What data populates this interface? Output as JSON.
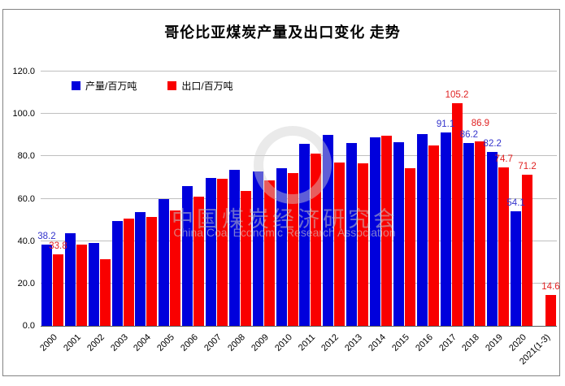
{
  "title": "哥伦比亚煤炭产量及出口变化 走势",
  "watermark": {
    "cn": "中国煤炭经济研究会",
    "en": "China Coal Economic Research Association"
  },
  "chart_data": {
    "type": "bar",
    "title": "哥伦比亚煤炭产量及出口变化 走势",
    "categories": [
      "2000",
      "2001",
      "2002",
      "2003",
      "2004",
      "2005",
      "2006",
      "2007",
      "2008",
      "2009",
      "2010",
      "2011",
      "2012",
      "2013",
      "2014",
      "2015",
      "2016",
      "2017",
      "2018",
      "2019",
      "2020",
      "2021(1-3)"
    ],
    "series": [
      {
        "name": "产量/百万吨",
        "color": "#0000DC",
        "label_color": "#3333CC",
        "values": [
          38.2,
          43.9,
          39.3,
          49.5,
          53.5,
          59.8,
          66.1,
          69.6,
          73.5,
          72.8,
          74.5,
          85.7,
          90.0,
          86.1,
          88.9,
          86.8,
          90.5,
          91.1,
          86.2,
          82.2,
          54.1,
          null
        ],
        "point_labels": [
          "38.2",
          null,
          null,
          null,
          null,
          null,
          null,
          null,
          null,
          null,
          null,
          null,
          null,
          null,
          null,
          null,
          null,
          "91.1",
          "86.2",
          "82.2",
          "54.1",
          null
        ]
      },
      {
        "name": "出口/百万吨",
        "color": "#F90000",
        "label_color": "#E02222",
        "values": [
          33.8,
          38.3,
          31.5,
          50.6,
          51.2,
          54.3,
          60.9,
          69.3,
          63.8,
          68.5,
          71.9,
          81.3,
          77.2,
          76.6,
          89.6,
          74.5,
          85.0,
          105.2,
          86.9,
          74.7,
          71.2,
          14.6
        ],
        "point_labels": [
          "33.8",
          null,
          null,
          null,
          null,
          null,
          null,
          null,
          null,
          null,
          null,
          null,
          null,
          null,
          null,
          null,
          null,
          "105.2",
          "86.9",
          "74.7",
          "71.2",
          "14.6"
        ]
      }
    ],
    "ylim": [
      0,
      120
    ],
    "ytick_step": 20,
    "ytick_labels": [
      "0.0",
      "20.0",
      "40.0",
      "60.0",
      "80.0",
      "100.0",
      "120.0"
    ],
    "grid": true,
    "legend_position": "inside-top-left"
  },
  "colors": {
    "gridline": "#BFBFBF",
    "axis": "#595959",
    "frame_border": "#848484",
    "title_text": "#000000",
    "tick_text": "#000000"
  }
}
